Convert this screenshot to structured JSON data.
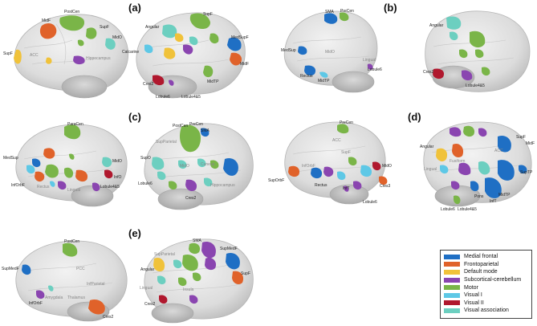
{
  "panels": [
    "(a)",
    "(b)",
    "(c)",
    "(d)",
    "(e)"
  ],
  "networks": {
    "medial_frontal": {
      "label": "Medial frontal",
      "color": "#1f6fc4"
    },
    "frontoparietal": {
      "label": "Frontoparietal",
      "color": "#e0622a"
    },
    "default_mode": {
      "label": "Default mode",
      "color": "#f0c23a"
    },
    "subcortical_cerebellum": {
      "label": "Subcortical-cerebellum",
      "color": "#8a45b0"
    },
    "motor": {
      "label": "Motor",
      "color": "#7ab548"
    },
    "visual_1": {
      "label": "Visual I",
      "color": "#5ec8e6"
    },
    "visual_2": {
      "label": "Visual II",
      "color": "#b0182e"
    },
    "visual_association": {
      "label": "Visual association",
      "color": "#6ccfc0"
    }
  },
  "legend_order": [
    "medial_frontal",
    "frontoparietal",
    "default_mode",
    "subcortical_cerebellum",
    "motor",
    "visual_1",
    "visual_2",
    "visual_association"
  ],
  "regions": {
    "postcen": "PostCen",
    "midf": "MidF",
    "supf": "SupF",
    "mido": "MidO",
    "acc": "ACC",
    "hippocampus": "Hippocampus",
    "angular": "Angular",
    "calcarine": "Calcarine",
    "medsupf": "MedSupF",
    "midtp": "MidTP",
    "cres2": "Cres2",
    "lobule6": "Lobule6",
    "lobule45": "Lobule4&5",
    "sma": "SMA",
    "precen": "PreCen",
    "rectus": "Rectus",
    "lingual": "Lingual",
    "paracen": "ParaCen",
    "medsup": "MedSup",
    "info": "InfO",
    "inforbf": "InfOrbF",
    "supo": "SupO",
    "supparietal": "SupParietal",
    "cuneus": "Cuneus",
    "suporbf": "SupOrbF",
    "inft": "InfT",
    "cres3": "Cres3",
    "pons": "Pons",
    "suptp": "SupTP",
    "fusiform": "Fusiform",
    "insula": "Insula",
    "pcc": "PCC",
    "infparietal": "InfParietal",
    "supmedf": "SupMedF",
    "amygdala": "Amygdala",
    "thalamus": "Thalamus"
  }
}
